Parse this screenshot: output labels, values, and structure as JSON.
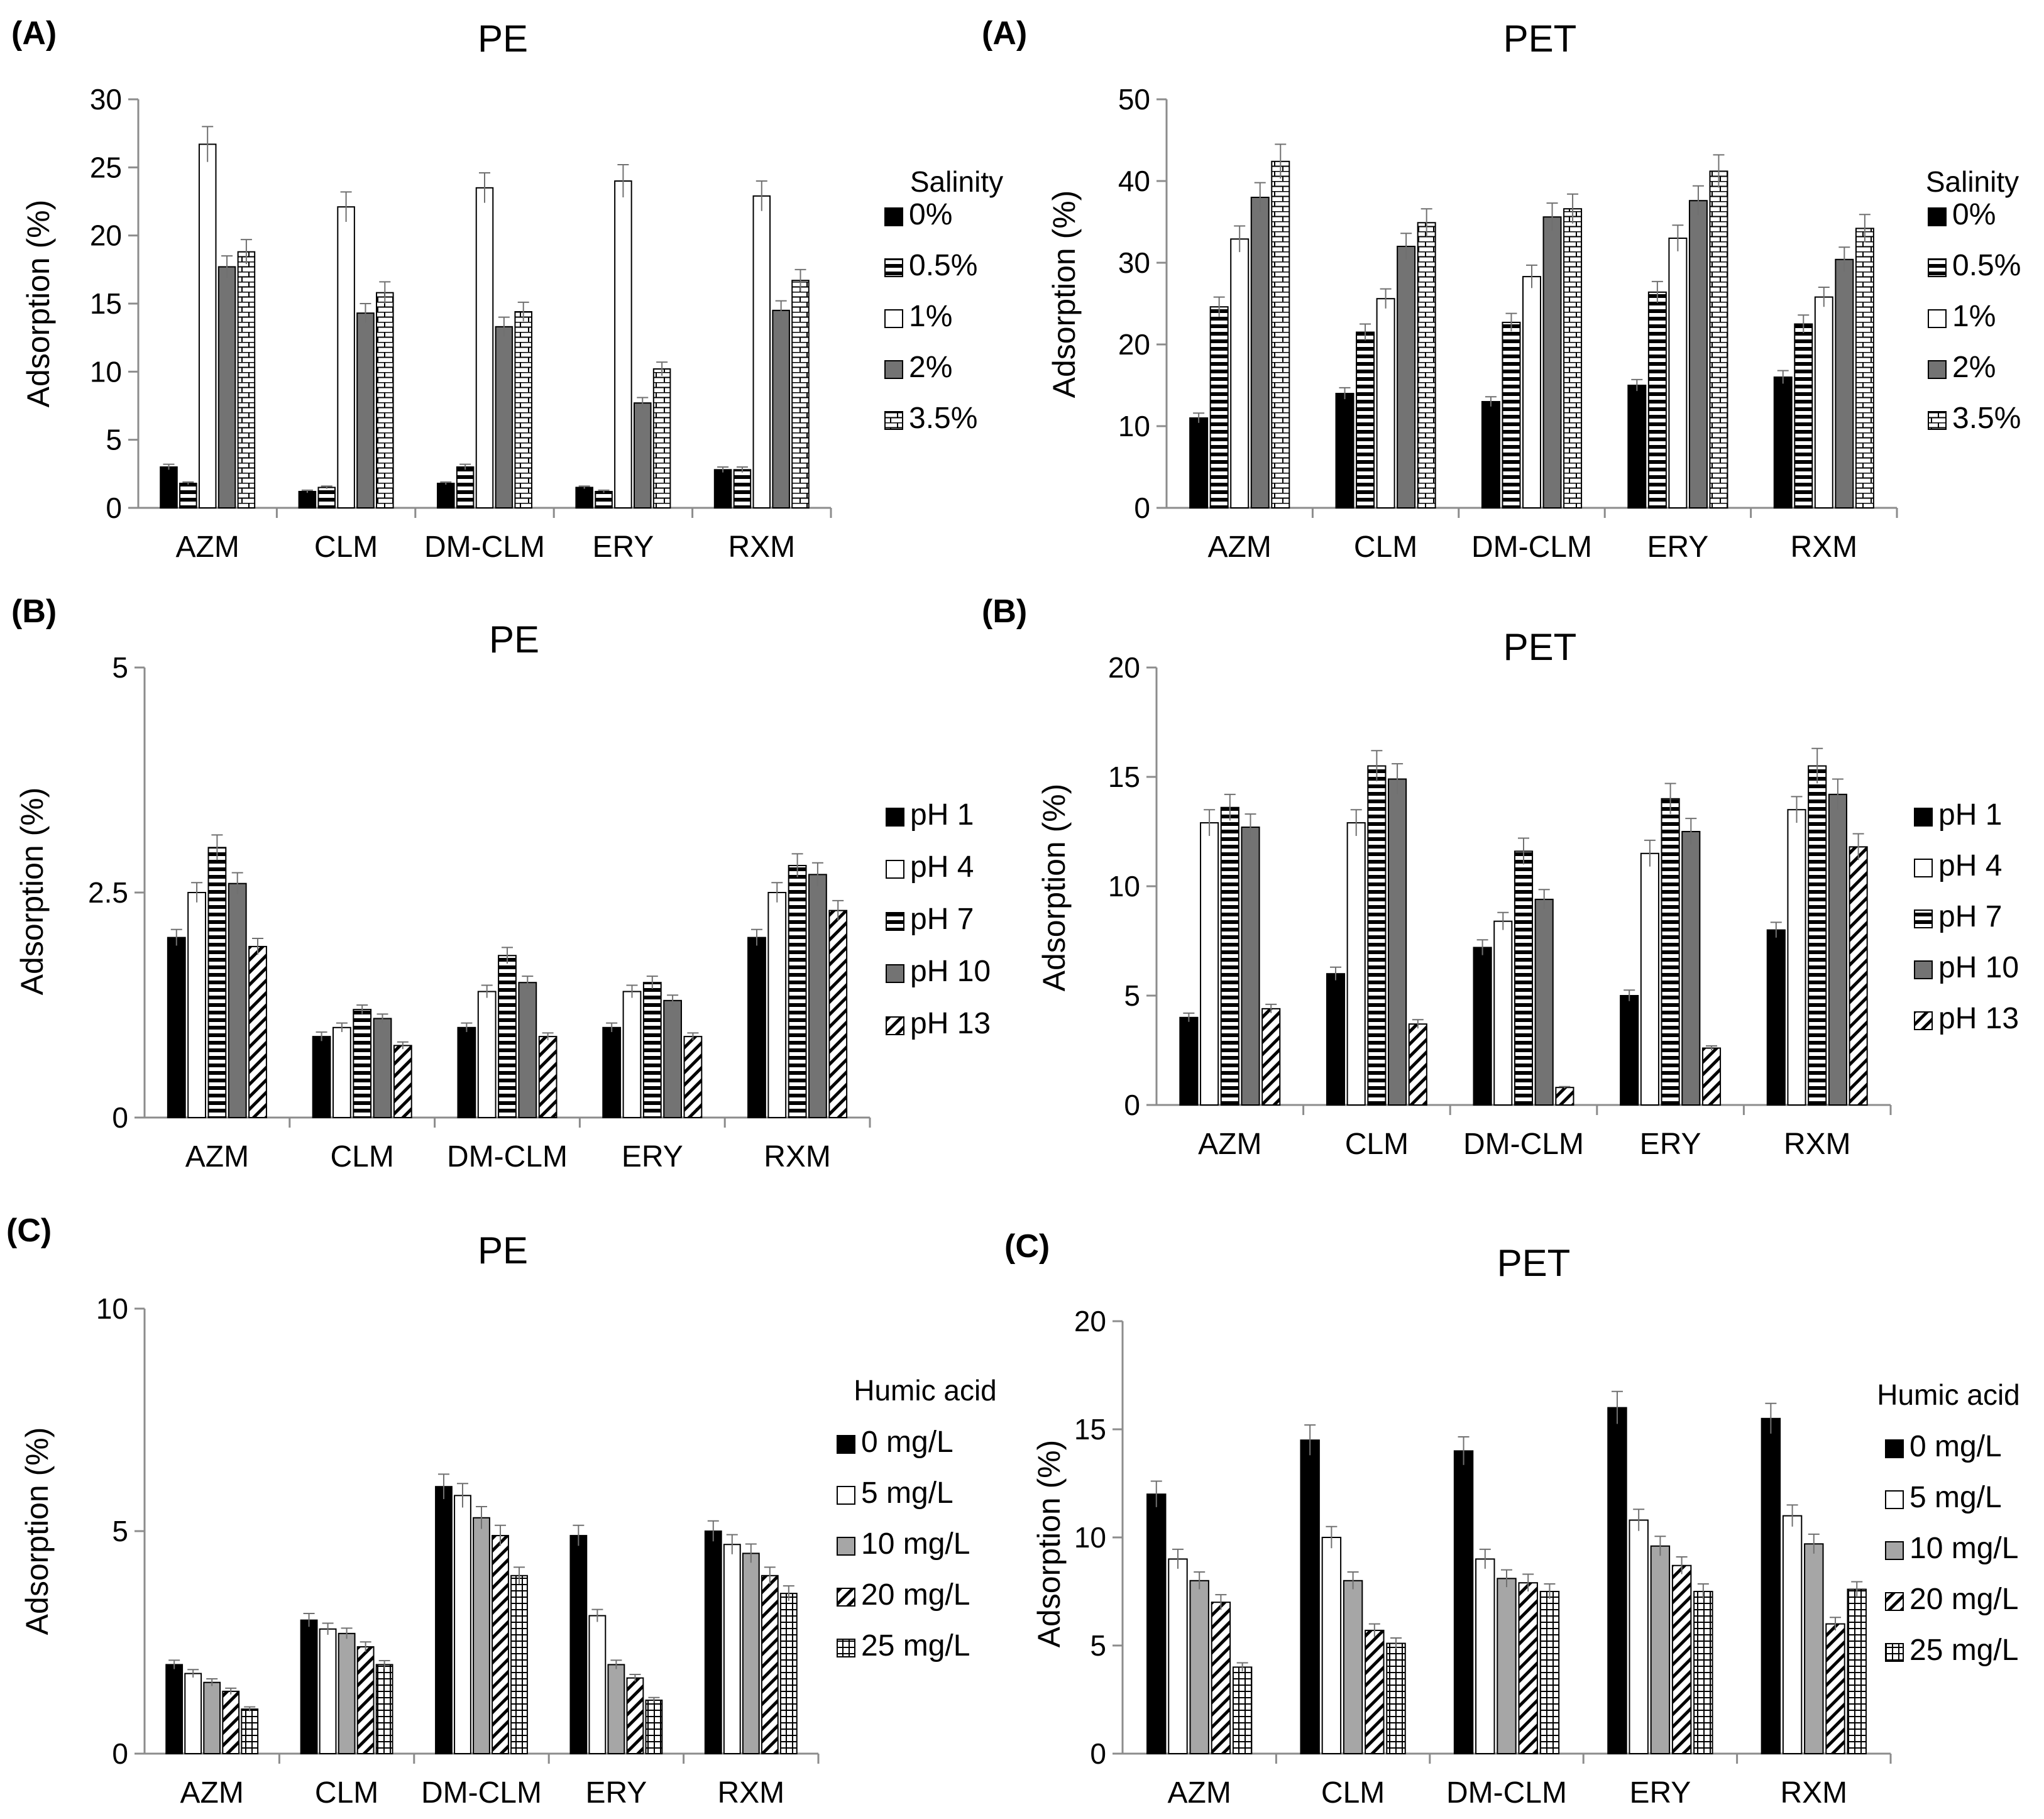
{
  "chart_data": [
    {
      "type": "bar",
      "panel_label": "(A)",
      "title": "PE",
      "ylabel": "Adsorption (%)",
      "xlabel": "",
      "ylim": [
        0,
        30
      ],
      "yticks": [
        0,
        5,
        10,
        15,
        20,
        25,
        30
      ],
      "categories": [
        "AZM",
        "CLM",
        "DM-CLM",
        "ERY",
        "RXM"
      ],
      "legend_title": "Salinity",
      "series": [
        {
          "name": "0%",
          "pattern": "black",
          "values": [
            3.0,
            1.2,
            1.8,
            1.5,
            2.8
          ],
          "errors": [
            0.2,
            0.1,
            0.1,
            0.1,
            0.2
          ]
        },
        {
          "name": "0.5%",
          "pattern": "hstripes",
          "values": [
            1.8,
            1.5,
            3.0,
            1.2,
            2.8
          ],
          "errors": [
            0.1,
            0.1,
            0.2,
            0.1,
            0.2
          ]
        },
        {
          "name": "1%",
          "pattern": "white",
          "values": [
            26.7,
            22.1,
            23.5,
            24.0,
            22.9
          ],
          "errors": [
            1.3,
            1.1,
            1.1,
            1.2,
            1.1
          ]
        },
        {
          "name": "2%",
          "pattern": "gray",
          "values": [
            17.7,
            14.3,
            13.3,
            7.7,
            14.5
          ],
          "errors": [
            0.8,
            0.7,
            0.7,
            0.4,
            0.7
          ]
        },
        {
          "name": "3.5%",
          "pattern": "brick",
          "values": [
            18.8,
            15.8,
            14.4,
            10.2,
            16.7
          ],
          "errors": [
            0.9,
            0.8,
            0.7,
            0.5,
            0.8
          ]
        }
      ]
    },
    {
      "type": "bar",
      "panel_label": "(A)",
      "title": "PET",
      "ylabel": "Adsorption (%)",
      "xlabel": "",
      "ylim": [
        0,
        50
      ],
      "yticks": [
        0,
        10,
        20,
        30,
        40,
        50
      ],
      "categories": [
        "AZM",
        "CLM",
        "DM-CLM",
        "ERY",
        "RXM"
      ],
      "legend_title": "Salinity",
      "series": [
        {
          "name": "0%",
          "pattern": "black",
          "values": [
            11.0,
            14.0,
            13.0,
            15.0,
            16.0
          ],
          "errors": [
            0.6,
            0.7,
            0.6,
            0.7,
            0.8
          ]
        },
        {
          "name": "0.5%",
          "pattern": "hstripes",
          "values": [
            24.6,
            21.5,
            22.7,
            26.4,
            22.5
          ],
          "errors": [
            1.2,
            1.0,
            1.1,
            1.3,
            1.1
          ]
        },
        {
          "name": "1%",
          "pattern": "white",
          "values": [
            32.9,
            25.6,
            28.3,
            33.0,
            25.8
          ],
          "errors": [
            1.6,
            1.2,
            1.4,
            1.6,
            1.2
          ]
        },
        {
          "name": "2%",
          "pattern": "gray",
          "values": [
            38.0,
            32.0,
            35.6,
            37.6,
            30.4
          ],
          "errors": [
            1.8,
            1.6,
            1.7,
            1.8,
            1.5
          ]
        },
        {
          "name": "3.5%",
          "pattern": "brick",
          "values": [
            42.4,
            34.9,
            36.6,
            41.2,
            34.2
          ],
          "errors": [
            2.1,
            1.7,
            1.8,
            2.0,
            1.7
          ]
        }
      ]
    },
    {
      "type": "bar",
      "panel_label": "(B)",
      "title": "PE",
      "ylabel": "Adsorption (%)",
      "xlabel": "",
      "ylim": [
        0,
        5
      ],
      "yticks": [
        0,
        2.5,
        5
      ],
      "categories": [
        "AZM",
        "CLM",
        "DM-CLM",
        "ERY",
        "RXM"
      ],
      "legend_title": "",
      "series": [
        {
          "name": "pH 1",
          "pattern": "black",
          "values": [
            2.0,
            0.9,
            1.0,
            1.0,
            2.0
          ],
          "errors": [
            0.09,
            0.05,
            0.05,
            0.05,
            0.09
          ]
        },
        {
          "name": "pH 4",
          "pattern": "white",
          "values": [
            2.5,
            1.0,
            1.4,
            1.4,
            2.5
          ],
          "errors": [
            0.11,
            0.05,
            0.07,
            0.07,
            0.11
          ]
        },
        {
          "name": "pH 7",
          "pattern": "hstripes",
          "values": [
            3.0,
            1.2,
            1.8,
            1.5,
            2.8
          ],
          "errors": [
            0.14,
            0.05,
            0.09,
            0.07,
            0.13
          ]
        },
        {
          "name": "pH 10",
          "pattern": "gray",
          "values": [
            2.6,
            1.1,
            1.5,
            1.3,
            2.7
          ],
          "errors": [
            0.12,
            0.05,
            0.07,
            0.06,
            0.13
          ]
        },
        {
          "name": "pH 13",
          "pattern": "diag",
          "values": [
            1.9,
            0.8,
            0.9,
            0.9,
            2.3
          ],
          "errors": [
            0.09,
            0.04,
            0.04,
            0.04,
            0.11
          ]
        }
      ]
    },
    {
      "type": "bar",
      "panel_label": "(B)",
      "title": "PET",
      "ylabel": "Adsorption (%)",
      "xlabel": "",
      "ylim": [
        0,
        20
      ],
      "yticks": [
        0,
        5,
        10,
        15,
        20
      ],
      "categories": [
        "AZM",
        "CLM",
        "DM-CLM",
        "ERY",
        "RXM"
      ],
      "legend_title": "",
      "series": [
        {
          "name": "pH 1",
          "pattern": "black",
          "values": [
            4.0,
            6.0,
            7.2,
            5.0,
            8.0
          ],
          "errors": [
            0.2,
            0.3,
            0.35,
            0.25,
            0.35
          ]
        },
        {
          "name": "pH 4",
          "pattern": "white",
          "values": [
            12.9,
            12.9,
            8.4,
            11.5,
            13.5
          ],
          "errors": [
            0.6,
            0.6,
            0.4,
            0.6,
            0.6
          ]
        },
        {
          "name": "pH 7",
          "pattern": "hstripes",
          "values": [
            13.6,
            15.5,
            11.6,
            14.0,
            15.5
          ],
          "errors": [
            0.6,
            0.7,
            0.6,
            0.7,
            0.8
          ]
        },
        {
          "name": "pH 10",
          "pattern": "gray",
          "values": [
            12.7,
            14.9,
            9.4,
            12.5,
            14.2
          ],
          "errors": [
            0.6,
            0.7,
            0.45,
            0.6,
            0.7
          ]
        },
        {
          "name": "pH 13",
          "pattern": "diag",
          "values": [
            4.4,
            3.7,
            0.8,
            2.6,
            11.8
          ],
          "errors": [
            0.2,
            0.2,
            0.04,
            0.1,
            0.6
          ]
        }
      ]
    },
    {
      "type": "bar",
      "panel_label": "(C)",
      "title": "PE",
      "ylabel": "Adsorption (%)",
      "xlabel": "",
      "ylim": [
        0,
        10
      ],
      "yticks": [
        0,
        5,
        10
      ],
      "categories": [
        "AZM",
        "CLM",
        "DM-CLM",
        "ERY",
        "RXM"
      ],
      "legend_title": "Humic acid",
      "series": [
        {
          "name": "0 mg/L",
          "pattern": "black",
          "values": [
            2.0,
            3.0,
            6.0,
            4.9,
            5.0
          ],
          "errors": [
            0.1,
            0.15,
            0.28,
            0.23,
            0.23
          ]
        },
        {
          "name": "5 mg/L",
          "pattern": "white",
          "values": [
            1.8,
            2.8,
            5.8,
            3.1,
            4.7
          ],
          "errors": [
            0.09,
            0.13,
            0.27,
            0.14,
            0.22
          ]
        },
        {
          "name": "10 mg/L",
          "pattern": "lightgray",
          "values": [
            1.6,
            2.7,
            5.3,
            2.0,
            4.5
          ],
          "errors": [
            0.08,
            0.12,
            0.25,
            0.1,
            0.21
          ]
        },
        {
          "name": "20 mg/L",
          "pattern": "diag",
          "values": [
            1.4,
            2.4,
            4.9,
            1.7,
            4.0
          ],
          "errors": [
            0.07,
            0.11,
            0.23,
            0.08,
            0.19
          ]
        },
        {
          "name": "25 mg/L",
          "pattern": "grid",
          "values": [
            1.0,
            2.0,
            4.0,
            1.2,
            3.6
          ],
          "errors": [
            0.05,
            0.09,
            0.19,
            0.06,
            0.17
          ]
        }
      ]
    },
    {
      "type": "bar",
      "panel_label": "(C)",
      "title": "PET",
      "ylabel": "Adsorption (%)",
      "xlabel": "",
      "ylim": [
        0,
        20
      ],
      "yticks": [
        0,
        5,
        10,
        15,
        20
      ],
      "categories": [
        "AZM",
        "CLM",
        "DM-CLM",
        "ERY",
        "RXM"
      ],
      "legend_title": "Humic acid",
      "series": [
        {
          "name": "0 mg/L",
          "pattern": "black",
          "values": [
            12.0,
            14.5,
            14.0,
            16.0,
            15.5
          ],
          "errors": [
            0.6,
            0.7,
            0.65,
            0.75,
            0.7
          ]
        },
        {
          "name": "5 mg/L",
          "pattern": "white",
          "values": [
            9.0,
            10.0,
            9.0,
            10.8,
            11.0
          ],
          "errors": [
            0.45,
            0.5,
            0.45,
            0.5,
            0.5
          ]
        },
        {
          "name": "10 mg/L",
          "pattern": "lightgray",
          "values": [
            8.0,
            8.0,
            8.1,
            9.6,
            9.7
          ],
          "errors": [
            0.4,
            0.4,
            0.4,
            0.45,
            0.45
          ]
        },
        {
          "name": "20 mg/L",
          "pattern": "diag",
          "values": [
            7.0,
            5.7,
            7.9,
            8.7,
            6.0
          ],
          "errors": [
            0.35,
            0.3,
            0.4,
            0.4,
            0.3
          ]
        },
        {
          "name": "25 mg/L",
          "pattern": "grid",
          "values": [
            4.0,
            5.1,
            7.5,
            7.5,
            7.6
          ],
          "errors": [
            0.2,
            0.25,
            0.35,
            0.35,
            0.35
          ]
        }
      ]
    }
  ],
  "colors": {
    "black": "#000000",
    "gray": "#737373",
    "lightgray": "#a6a6a6",
    "axis": "#8c8c8c",
    "errorbar": "#707070"
  }
}
